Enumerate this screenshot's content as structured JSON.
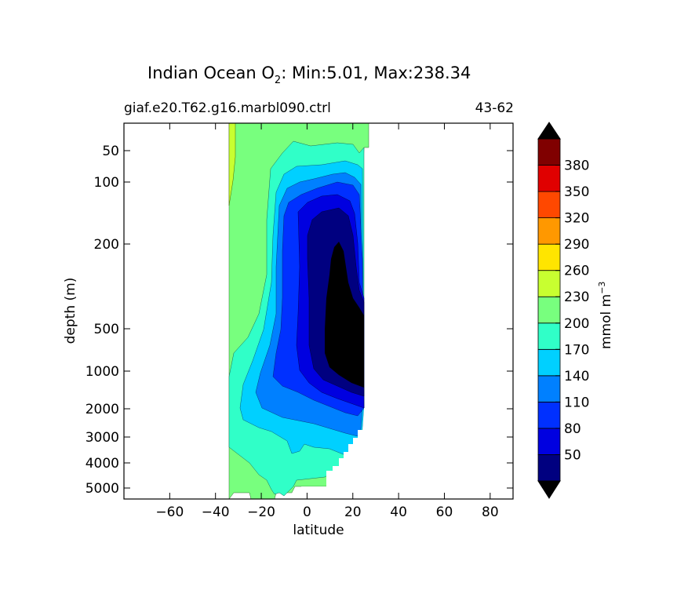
{
  "chart_data": {
    "type": "contour",
    "title_main": "Indian Ocean O",
    "title_sub": "2",
    "title_stats": ": Min:5.01, Max:238.34",
    "subtitle_left": "giaf.e20.T62.g16.marbl090.ctrl",
    "subtitle_right": "43-62",
    "xlabel": "latitude",
    "ylabel": "depth (m)",
    "xlim": [
      -80,
      90
    ],
    "ylim_depth": [
      15,
      5750
    ],
    "yscale": "depth-stretched",
    "x_ticks": [
      -60,
      -40,
      -20,
      0,
      20,
      40,
      60,
      80
    ],
    "x_tick_labels": [
      "−60",
      "−40",
      "−20",
      "0",
      "20",
      "40",
      "60",
      "80"
    ],
    "y_ticks": [
      50,
      100,
      200,
      500,
      1000,
      2000,
      3000,
      4000,
      5000
    ],
    "y_tick_labels": [
      "50",
      "100",
      "200",
      "500",
      "1000",
      "2000",
      "3000",
      "4000",
      "5000"
    ],
    "ocean_lat_range": [
      -34,
      26
    ],
    "colorbar": {
      "label": "mmol m",
      "label_sup": "−3",
      "levels": [
        20,
        50,
        80,
        110,
        140,
        170,
        200,
        230,
        260,
        290,
        320,
        350,
        380,
        410
      ],
      "tick_labels": [
        "50",
        "80",
        "110",
        "140",
        "170",
        "200",
        "230",
        "260",
        "290",
        "320",
        "350",
        "380"
      ],
      "colors": [
        "#000080",
        "#0000e0",
        "#0030ff",
        "#0080ff",
        "#00d0ff",
        "#30ffc8",
        "#78ff7e",
        "#c8ff30",
        "#ffe500",
        "#ff9800",
        "#ff4800",
        "#e00000",
        "#800000"
      ],
      "under_color": "#000000",
      "over_color": "#000000"
    }
  }
}
